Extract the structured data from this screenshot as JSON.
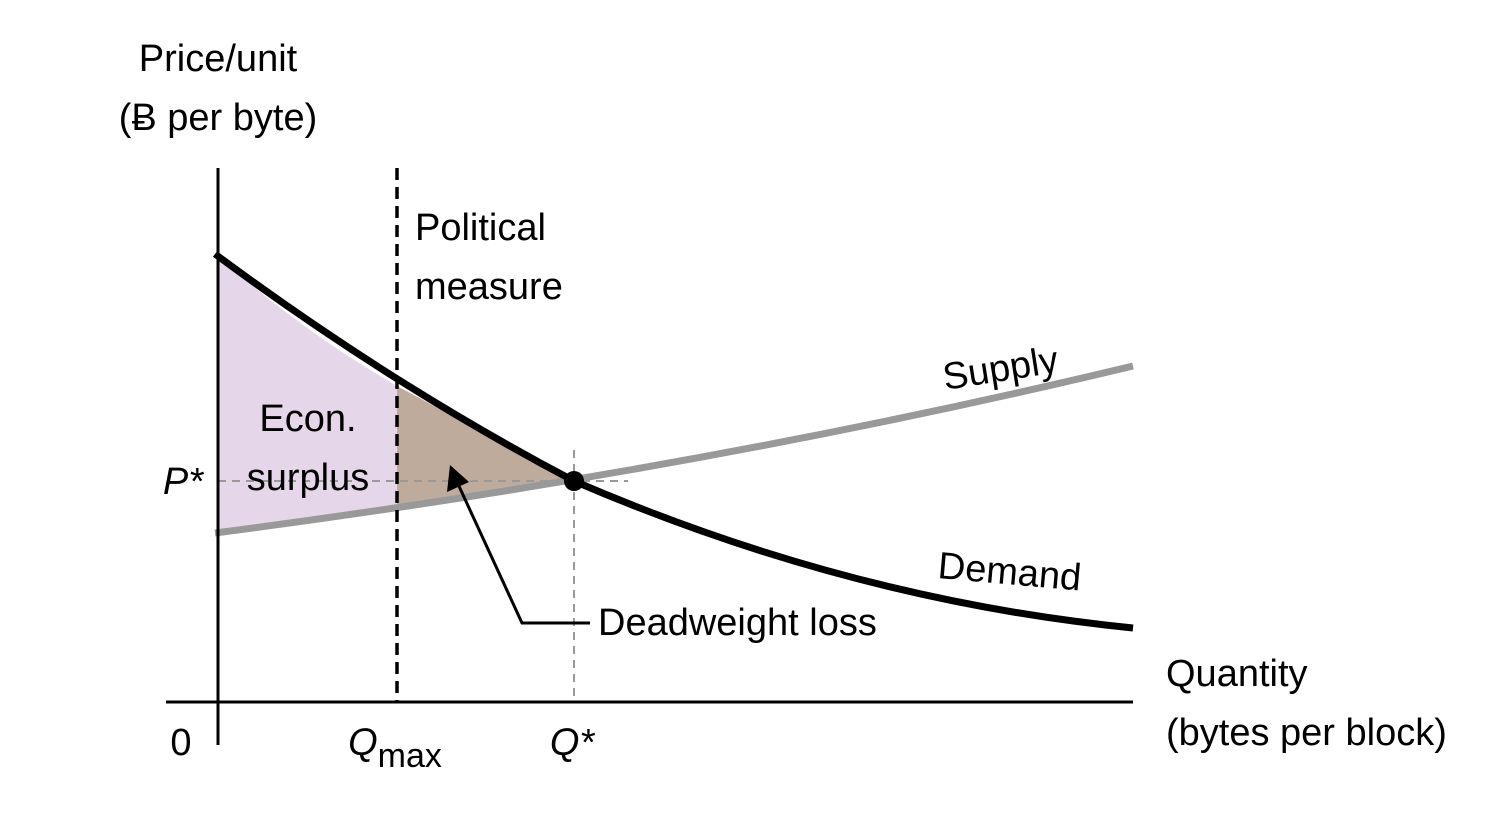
{
  "y_axis_label": {
    "line1": "Price/unit",
    "line2": "(Ƀ per byte)"
  },
  "x_axis_label": {
    "line1": "Quantity",
    "line2": "(bytes per block)"
  },
  "origin_label": "0",
  "q_max_label": {
    "letter": "Q",
    "subscript": "max"
  },
  "q_star_label": "Q*",
  "p_star_label": "P*",
  "political_measure_label": {
    "line1": "Political",
    "line2": "measure"
  },
  "supply_label": "Supply",
  "demand_label": "Demand",
  "econ_surplus_label": {
    "line1": "Econ.",
    "line2": "surplus"
  },
  "deadweight_loss_label": "Deadweight loss",
  "colors": {
    "demand_curve": "#000000",
    "supply_curve": "#999999",
    "econ_surplus_fill": "#e6d6e9",
    "deadweight_loss_fill": "#bfab9c",
    "guide_lines": "#999999"
  }
}
